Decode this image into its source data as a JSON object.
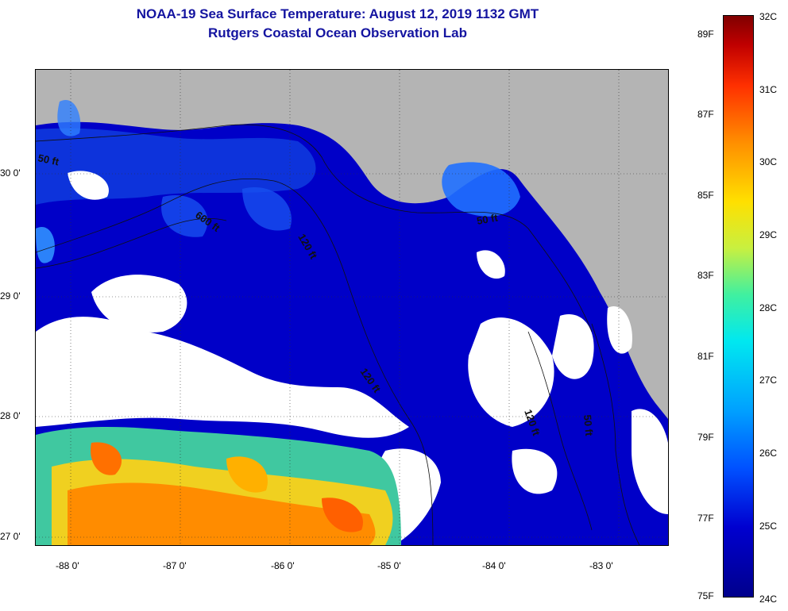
{
  "title": {
    "line1": "NOAA-19 Sea Surface Temperature:  August 12, 2019 1132 GMT",
    "line2": "Rutgers Coastal Ocean Observation Lab"
  },
  "map": {
    "lat_labels": [
      "30 0'",
      "29 0'",
      "28 0'",
      "27 0'"
    ],
    "lon_labels": [
      "-88 0'",
      "-87 0'",
      "-86 0'",
      "-85 0'",
      "-84 0'",
      "-83 0'"
    ],
    "contour_labels": [
      "50 ft",
      "600 ft",
      "120 ft",
      "50 ft",
      "120 ft",
      "50 ft",
      "120 ft"
    ],
    "colors": {
      "land": "#b4b4b4",
      "cloud": "#ffffff",
      "deep_water": "#0000c8",
      "title": "#1414a0"
    }
  },
  "colorbar": {
    "fahrenheit": [
      "89F",
      "87F",
      "85F",
      "83F",
      "81F",
      "79F",
      "77F",
      "75F"
    ],
    "celsius": [
      "32C",
      "31C",
      "30C",
      "29C",
      "28C",
      "27C",
      "26C",
      "25C",
      "24C"
    ]
  }
}
